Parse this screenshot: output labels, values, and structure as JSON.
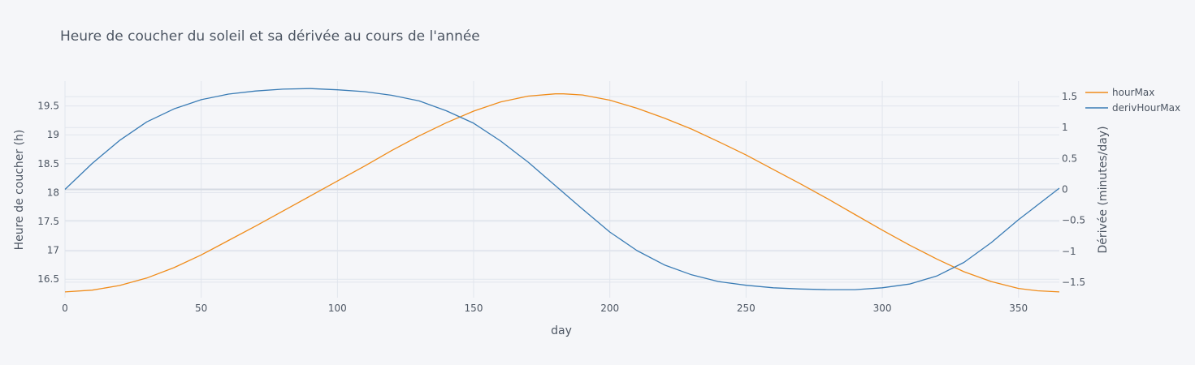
{
  "chart_data": {
    "type": "line",
    "title": "Heure de coucher du soleil et sa dérivée au cours de l'année",
    "xlabel": "day",
    "ylabel_left": "Heure de coucher (h)",
    "ylabel_right": "Dérivée (minutes/day)",
    "xlim": [
      0,
      365
    ],
    "ylim_left": [
      16.18,
      19.93
    ],
    "ylim_right": [
      -1.75,
      1.75
    ],
    "xticks": [
      0,
      50,
      100,
      150,
      200,
      250,
      300,
      350
    ],
    "xtick_labels": [
      "0",
      "50",
      "100",
      "150",
      "200",
      "250",
      "300",
      "350"
    ],
    "yticks_left": [
      16.5,
      17,
      17.5,
      18,
      18.5,
      19,
      19.5
    ],
    "ytick_labels_left": [
      "16.5",
      "17",
      "17.5",
      "18",
      "18.5",
      "19",
      "19.5"
    ],
    "yticks_right": [
      -1.5,
      -1,
      -0.5,
      0,
      0.5,
      1,
      1.5
    ],
    "ytick_labels_right": [
      "−1.5",
      "−1",
      "−0.5",
      "0",
      "0.5",
      "1",
      "1.5"
    ],
    "grid": true,
    "legend_position": "top-right",
    "series": [
      {
        "name": "hourMax",
        "axis": "left",
        "color": "#f08c1a",
        "x": [
          0,
          10,
          20,
          30,
          40,
          50,
          60,
          70,
          80,
          90,
          100,
          110,
          120,
          130,
          140,
          150,
          160,
          170,
          180,
          183,
          190,
          200,
          210,
          220,
          230,
          240,
          250,
          260,
          270,
          280,
          290,
          300,
          310,
          320,
          330,
          340,
          350,
          357,
          365
        ],
        "values": [
          16.28,
          16.31,
          16.39,
          16.52,
          16.7,
          16.92,
          17.17,
          17.42,
          17.68,
          17.94,
          18.2,
          18.46,
          18.73,
          18.98,
          19.21,
          19.41,
          19.57,
          19.67,
          19.71,
          19.71,
          19.69,
          19.6,
          19.46,
          19.29,
          19.1,
          18.88,
          18.65,
          18.4,
          18.15,
          17.89,
          17.62,
          17.35,
          17.09,
          16.85,
          16.63,
          16.46,
          16.34,
          16.3,
          16.28
        ]
      },
      {
        "name": "derivHourMax",
        "axis": "right",
        "color": "#3a7cb5",
        "x": [
          0,
          10,
          20,
          30,
          40,
          50,
          60,
          70,
          80,
          90,
          100,
          110,
          120,
          130,
          140,
          150,
          160,
          170,
          180,
          190,
          200,
          210,
          220,
          230,
          240,
          250,
          260,
          270,
          280,
          290,
          300,
          310,
          320,
          330,
          340,
          350,
          365
        ],
        "values": [
          0,
          0.42,
          0.79,
          1.09,
          1.3,
          1.45,
          1.54,
          1.59,
          1.62,
          1.63,
          1.61,
          1.58,
          1.52,
          1.43,
          1.27,
          1.07,
          0.78,
          0.44,
          0.06,
          -0.32,
          -0.69,
          -0.99,
          -1.22,
          -1.38,
          -1.49,
          -1.55,
          -1.59,
          -1.61,
          -1.62,
          -1.62,
          -1.59,
          -1.53,
          -1.4,
          -1.18,
          -0.86,
          -0.49,
          0.02
        ]
      }
    ]
  }
}
